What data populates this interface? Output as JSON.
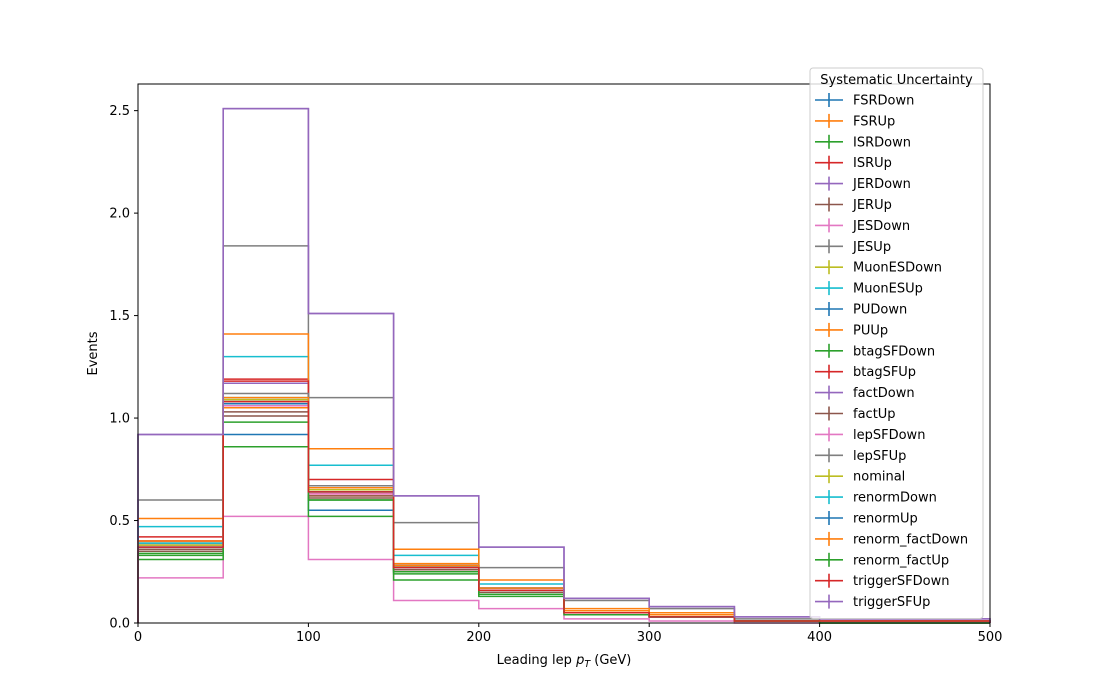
{
  "chart_data": {
    "type": "line",
    "style": "step-histogram",
    "title": "",
    "xlabel": "Leading lep pT (GeV)",
    "ylabel": "Events",
    "xlim": [
      0,
      500
    ],
    "ylim": [
      0,
      2.63
    ],
    "xticks": [
      0,
      100,
      200,
      300,
      400,
      500
    ],
    "yticks": [
      0.0,
      0.5,
      1.0,
      1.5,
      2.0,
      2.5
    ],
    "xtick_labels": [
      "0",
      "100",
      "200",
      "300",
      "400",
      "500"
    ],
    "ytick_labels": [
      "0.0",
      "0.5",
      "1.0",
      "1.5",
      "2.0",
      "2.5"
    ],
    "bin_edges": [
      0,
      50,
      100,
      150,
      200,
      250,
      300,
      350,
      400,
      450,
      500
    ],
    "legend": {
      "title": "Systematic Uncertainty",
      "placement": "upper right"
    },
    "grid": false,
    "series": [
      {
        "name": "FSRDown",
        "color": "#1f77b4",
        "values": [
          0.38,
          0.92,
          0.55,
          0.25,
          0.15,
          0.05,
          0.03,
          0.01,
          0.01,
          0.01
        ]
      },
      {
        "name": "FSRUp",
        "color": "#ff7f0e",
        "values": [
          0.51,
          1.05,
          0.62,
          0.29,
          0.17,
          0.06,
          0.04,
          0.01,
          0.01,
          0.01
        ]
      },
      {
        "name": "ISRDown",
        "color": "#2ca02c",
        "values": [
          0.33,
          0.98,
          0.6,
          0.25,
          0.15,
          0.05,
          0.03,
          0.01,
          0.01,
          0.01
        ]
      },
      {
        "name": "ISRUp",
        "color": "#d62728",
        "values": [
          0.42,
          1.19,
          0.63,
          0.28,
          0.16,
          0.05,
          0.03,
          0.01,
          0.01,
          0.01
        ]
      },
      {
        "name": "JERDown",
        "color": "#9467bd",
        "values": [
          0.4,
          1.17,
          0.65,
          0.28,
          0.17,
          0.06,
          0.04,
          0.01,
          0.01,
          0.01
        ]
      },
      {
        "name": "JERUp",
        "color": "#8c564b",
        "values": [
          0.36,
          1.01,
          0.61,
          0.26,
          0.16,
          0.05,
          0.03,
          0.01,
          0.01,
          0.01
        ]
      },
      {
        "name": "JESDown",
        "color": "#e377c2",
        "values": [
          0.22,
          0.52,
          0.31,
          0.11,
          0.07,
          0.02,
          0.01,
          0.0,
          0.0,
          0.0
        ]
      },
      {
        "name": "JESUp",
        "color": "#7f7f7f",
        "values": [
          0.6,
          1.84,
          1.1,
          0.49,
          0.27,
          0.11,
          0.07,
          0.02,
          0.01,
          0.01
        ]
      },
      {
        "name": "MuonESDown",
        "color": "#bcbd22",
        "values": [
          0.38,
          1.08,
          0.64,
          0.27,
          0.16,
          0.05,
          0.03,
          0.01,
          0.01,
          0.01
        ]
      },
      {
        "name": "MuonESUp",
        "color": "#17becf",
        "values": [
          0.47,
          1.3,
          0.77,
          0.33,
          0.19,
          0.06,
          0.04,
          0.01,
          0.01,
          0.01
        ]
      },
      {
        "name": "PUDown",
        "color": "#1f77b4",
        "values": [
          0.37,
          1.07,
          0.64,
          0.27,
          0.16,
          0.05,
          0.03,
          0.01,
          0.01,
          0.01
        ]
      },
      {
        "name": "PUUp",
        "color": "#ff7f0e",
        "values": [
          0.39,
          1.41,
          0.85,
          0.36,
          0.21,
          0.07,
          0.05,
          0.01,
          0.01,
          0.01
        ]
      },
      {
        "name": "btagSFDown",
        "color": "#2ca02c",
        "values": [
          0.31,
          0.86,
          0.52,
          0.21,
          0.13,
          0.04,
          0.03,
          0.01,
          0.0,
          0.0
        ]
      },
      {
        "name": "btagSFUp",
        "color": "#d62728",
        "values": [
          0.4,
          1.18,
          0.7,
          0.28,
          0.17,
          0.06,
          0.03,
          0.01,
          0.01,
          0.01
        ]
      },
      {
        "name": "factDown",
        "color": "#9467bd",
        "values": [
          0.92,
          2.51,
          1.51,
          0.62,
          0.37,
          0.12,
          0.08,
          0.03,
          0.02,
          0.02
        ]
      },
      {
        "name": "factUp",
        "color": "#8c564b",
        "values": [
          0.35,
          1.03,
          0.62,
          0.26,
          0.15,
          0.05,
          0.03,
          0.01,
          0.01,
          0.01
        ]
      },
      {
        "name": "lepSFDown",
        "color": "#e377c2",
        "values": [
          0.38,
          1.06,
          0.63,
          0.27,
          0.16,
          0.05,
          0.03,
          0.01,
          0.01,
          0.01
        ]
      },
      {
        "name": "lepSFUp",
        "color": "#7f7f7f",
        "values": [
          0.39,
          1.12,
          0.67,
          0.28,
          0.17,
          0.06,
          0.03,
          0.01,
          0.01,
          0.01
        ]
      },
      {
        "name": "nominal",
        "color": "#bcbd22",
        "values": [
          0.38,
          1.09,
          0.65,
          0.27,
          0.16,
          0.05,
          0.03,
          0.01,
          0.01,
          0.01
        ]
      },
      {
        "name": "renormDown",
        "color": "#17becf",
        "values": [
          0.39,
          1.1,
          0.66,
          0.28,
          0.17,
          0.06,
          0.03,
          0.01,
          0.01,
          0.01
        ]
      },
      {
        "name": "renormUp",
        "color": "#1f77b4",
        "values": [
          0.37,
          1.08,
          0.64,
          0.27,
          0.16,
          0.05,
          0.03,
          0.01,
          0.01,
          0.01
        ]
      },
      {
        "name": "renorm_factDown",
        "color": "#ff7f0e",
        "values": [
          0.4,
          1.1,
          0.66,
          0.28,
          0.17,
          0.06,
          0.04,
          0.01,
          0.01,
          0.01
        ]
      },
      {
        "name": "renorm_factUp",
        "color": "#2ca02c",
        "values": [
          0.34,
          0.86,
          0.6,
          0.24,
          0.14,
          0.05,
          0.03,
          0.01,
          0.0,
          0.0
        ]
      },
      {
        "name": "triggerSFDown",
        "color": "#d62728",
        "values": [
          0.37,
          1.08,
          0.64,
          0.27,
          0.16,
          0.05,
          0.03,
          0.01,
          0.01,
          0.01
        ]
      },
      {
        "name": "triggerSFUp",
        "color": "#9467bd",
        "values": [
          0.92,
          2.51,
          1.51,
          0.62,
          0.37,
          0.12,
          0.08,
          0.03,
          0.02,
          0.02
        ]
      }
    ]
  }
}
